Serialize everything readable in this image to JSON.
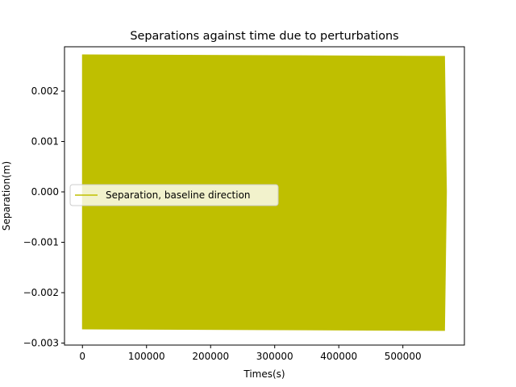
{
  "chart_data": {
    "type": "line",
    "title": "Separations against time due to perturbations",
    "xlabel": "Times(s)",
    "ylabel": "Separation(m)",
    "xlim": [
      -28000,
      596000
    ],
    "ylim": [
      -0.00304,
      0.00288
    ],
    "xticks": [
      0,
      100000,
      200000,
      300000,
      400000,
      500000
    ],
    "xtick_labels": [
      "0",
      "100000",
      "200000",
      "300000",
      "400000",
      "500000"
    ],
    "yticks": [
      -0.003,
      -0.002,
      -0.001,
      0.0,
      0.001,
      0.002
    ],
    "ytick_labels": [
      "−0.003",
      "−0.002",
      "−0.001",
      "0.000",
      "0.001",
      "0.002"
    ],
    "grid": false,
    "legend_position": "center-left",
    "series": [
      {
        "name": "Separation, baseline direction",
        "color": "#bfbf00",
        "style": "dense-oscillation",
        "x": [
          0,
          565000,
          568000
        ],
        "upper": [
          0.00272,
          0.00269,
          0.0
        ],
        "lower": [
          -0.00272,
          -0.00275,
          0.0
        ]
      }
    ]
  }
}
